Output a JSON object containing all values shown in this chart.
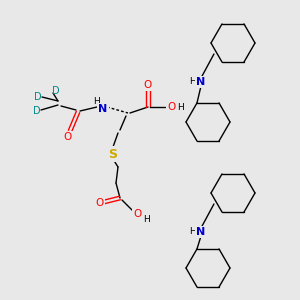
{
  "bg_color": "#e8e8e8",
  "fig_width": 3.0,
  "fig_height": 3.0,
  "dpi": 100,
  "atom_colors": {
    "C": "#000000",
    "H": "#000000",
    "N": "#0000cd",
    "O": "#ff0000",
    "S": "#ccaa00",
    "D": "#008888"
  }
}
